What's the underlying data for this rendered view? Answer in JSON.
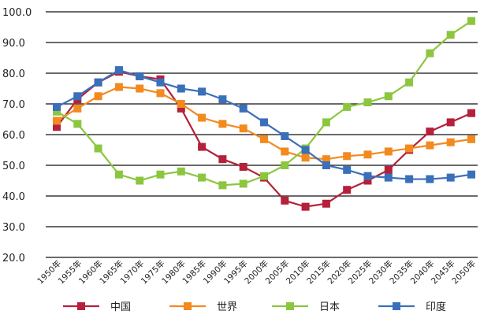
{
  "chart_data": {
    "type": "line",
    "title": "",
    "xlabel": "",
    "ylabel": "",
    "ylim": [
      20,
      100
    ],
    "y_ticks": [
      "20.0",
      "30.0",
      "40.0",
      "50.0",
      "60.0",
      "70.0",
      "80.0",
      "90.0",
      "100.0"
    ],
    "categories": [
      "1950年",
      "1955年",
      "1960年",
      "1965年",
      "1970年",
      "1975年",
      "1980年",
      "1985年",
      "1990年",
      "1995年",
      "2000年",
      "2005年",
      "2010年",
      "2015年",
      "2020年",
      "2025年",
      "2030年",
      "2035年",
      "2040年",
      "2045年",
      "2050年"
    ],
    "grid": "horizontal",
    "legend_position": "bottom",
    "series": [
      {
        "name": "中国",
        "color": "#b5203a",
        "values": [
          62.5,
          71.5,
          77.0,
          80.5,
          79.0,
          78.0,
          68.5,
          56.0,
          52.0,
          49.5,
          46.0,
          38.5,
          36.5,
          37.5,
          42.0,
          45.0,
          48.5,
          55.0,
          61.0,
          64.0,
          67.0
        ]
      },
      {
        "name": "世界",
        "color": "#f28a1f",
        "values": [
          64.5,
          68.5,
          72.5,
          75.5,
          75.0,
          73.5,
          70.0,
          65.5,
          63.5,
          62.0,
          58.5,
          54.5,
          52.5,
          52.0,
          53.0,
          53.5,
          54.5,
          55.5,
          56.5,
          57.5,
          58.5
        ]
      },
      {
        "name": "日本",
        "color": "#8cc63f",
        "values": [
          67.5,
          63.5,
          55.5,
          47.0,
          45.0,
          47.0,
          48.0,
          46.0,
          43.5,
          44.0,
          46.5,
          50.0,
          55.5,
          64.0,
          69.0,
          70.5,
          72.5,
          77.0,
          86.5,
          92.5,
          97.0
        ]
      },
      {
        "name": "印度",
        "color": "#3a6fba",
        "values": [
          69.0,
          72.5,
          77.0,
          81.0,
          79.0,
          77.0,
          75.0,
          74.0,
          71.5,
          68.5,
          64.0,
          59.5,
          55.0,
          50.0,
          48.5,
          46.5,
          46.0,
          45.5,
          45.5,
          46.0,
          47.0
        ]
      }
    ]
  }
}
